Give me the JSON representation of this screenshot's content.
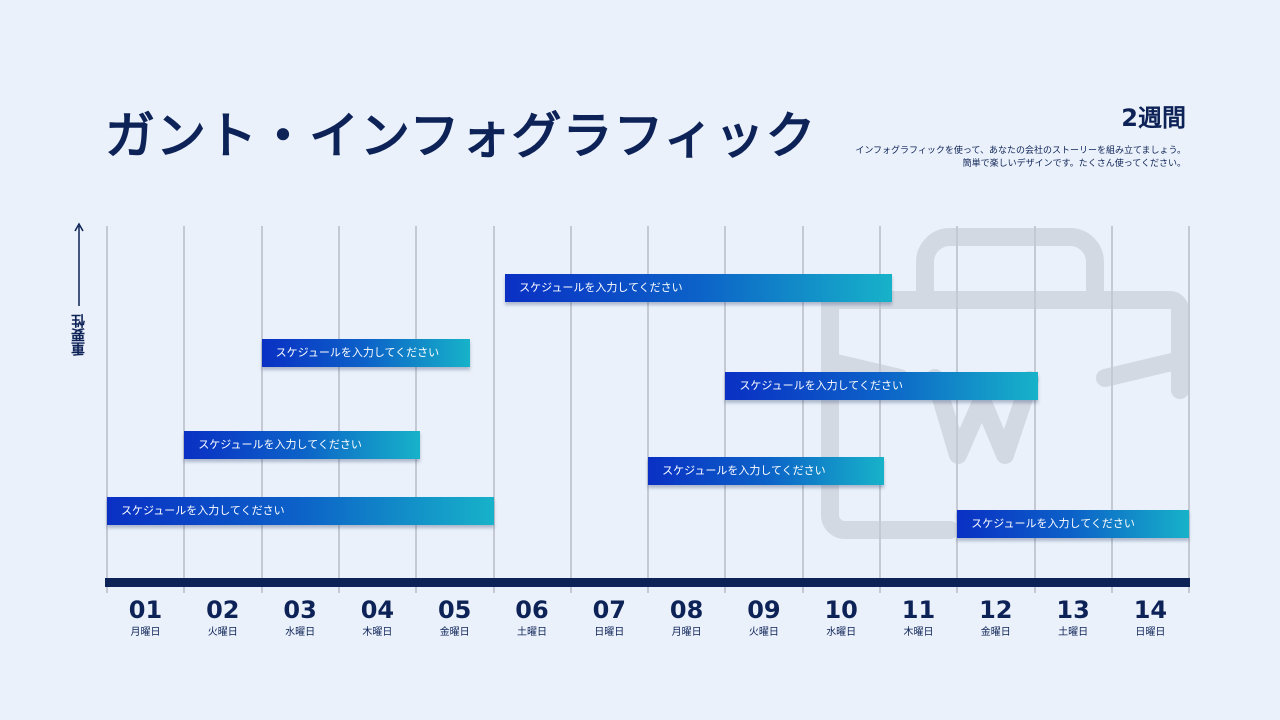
{
  "title": "ガント・インフォグラフィック",
  "duration": "2週間",
  "description": [
    "インフォグラフィックを使って、あなたの会社のストーリーを組み立てましょう。",
    "簡単で楽しいデザインです。たくさん使ってください。"
  ],
  "axis_label": "重要性",
  "colors": {
    "navy": "#0d2256",
    "bar_start": "#0a30c4",
    "bar_end": "#17b2c9",
    "background": "#eaf1fa",
    "grid": "#c4c9d3"
  },
  "watermark_icon": "briefcase-icon",
  "days": [
    {
      "num": "01",
      "name": "月曜日"
    },
    {
      "num": "02",
      "name": "火曜日"
    },
    {
      "num": "03",
      "name": "水曜日"
    },
    {
      "num": "04",
      "name": "木曜日"
    },
    {
      "num": "05",
      "name": "金曜日"
    },
    {
      "num": "06",
      "name": "土曜日"
    },
    {
      "num": "07",
      "name": "日曜日"
    },
    {
      "num": "08",
      "name": "月曜日"
    },
    {
      "num": "09",
      "name": "火曜日"
    },
    {
      "num": "10",
      "name": "水曜日"
    },
    {
      "num": "11",
      "name": "木曜日"
    },
    {
      "num": "12",
      "name": "金曜日"
    },
    {
      "num": "13",
      "name": "土曜日"
    },
    {
      "num": "14",
      "name": "日曜日"
    }
  ],
  "tasks": [
    {
      "label": "スケジュールを入力してください",
      "start": 6.15,
      "end": 11.15,
      "importance": 5
    },
    {
      "label": "スケジュールを入力してください",
      "start": 3.0,
      "end": 5.7,
      "importance": 4
    },
    {
      "label": "スケジュールを入力してください",
      "start": 9.0,
      "end": 13.05,
      "importance": 3.5
    },
    {
      "label": "スケジュールを入力してください",
      "start": 2.0,
      "end": 5.05,
      "importance": 2.6
    },
    {
      "label": "スケジュールを入力してください",
      "start": 8.0,
      "end": 11.05,
      "importance": 2.2
    },
    {
      "label": "スケジュールを入力してください",
      "start": 1.0,
      "end": 6.0,
      "importance": 1.6
    },
    {
      "label": "スケジュールを入力してください",
      "start": 12.0,
      "end": 15.0,
      "importance": 1.4
    }
  ]
}
